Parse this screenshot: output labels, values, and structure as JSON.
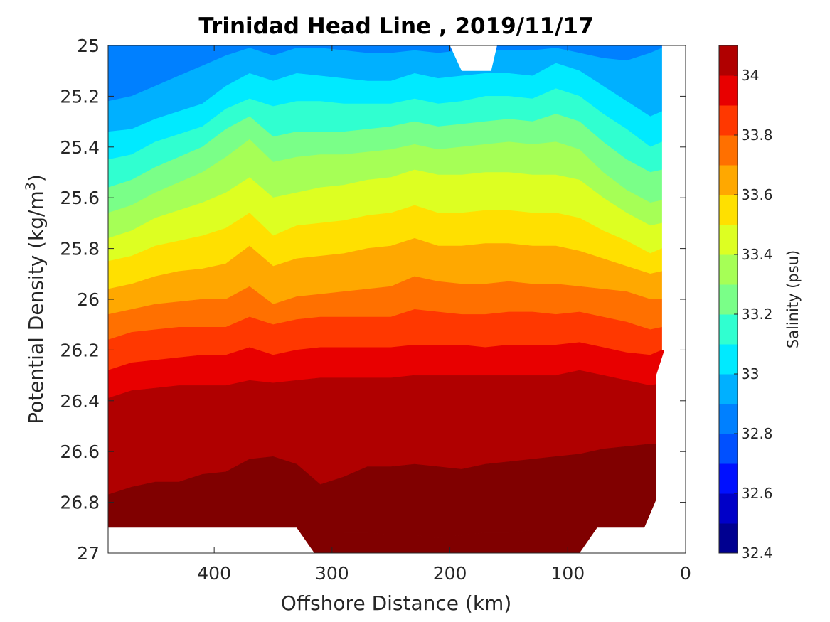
{
  "chart_data": {
    "type": "filled-contour",
    "title": "Trinidad Head Line , 2019/11/17",
    "xlabel": "Offshore Distance (km)",
    "ylabel_prefix": "Potential Density (kg/m",
    "ylabel_sup": "3",
    "ylabel_suffix": ")",
    "colorbar_label": "Salinity (psu)",
    "xlim": [
      0,
      490
    ],
    "x_reversed": true,
    "ylim": [
      25,
      27
    ],
    "y_reversed": true,
    "xticks": [
      "400",
      "300",
      "200",
      "100",
      "0"
    ],
    "xtick_values": [
      400,
      300,
      200,
      100,
      0
    ],
    "yticks": [
      "25",
      "25.2",
      "25.4",
      "25.6",
      "25.8",
      "26",
      "26.2",
      "26.4",
      "26.6",
      "26.8",
      "27"
    ],
    "ytick_values": [
      25,
      25.2,
      25.4,
      25.6,
      25.8,
      26,
      26.2,
      26.4,
      26.6,
      26.8,
      27
    ],
    "colorbar_range": [
      32.4,
      34.1
    ],
    "colorbar_ticks": [
      "32.4",
      "32.6",
      "32.8",
      "33",
      "33.2",
      "33.4",
      "33.6",
      "33.8",
      "34"
    ],
    "colorbar_tick_values": [
      32.4,
      32.6,
      32.8,
      33.0,
      33.2,
      33.4,
      33.6,
      33.8,
      34.0
    ],
    "levels": [
      32.5,
      32.6,
      32.7,
      32.8,
      32.9,
      33.0,
      33.1,
      33.2,
      33.3,
      33.4,
      33.5,
      33.6,
      33.7,
      33.8,
      33.9,
      34.0
    ],
    "colors": [
      "#000090",
      "#0000c8",
      "#0010ff",
      "#0050ff",
      "#0080ff",
      "#00b0ff",
      "#00eaff",
      "#30ffd0",
      "#7aff88",
      "#a6ff56",
      "#ddff22",
      "#ffe000",
      "#ffa800",
      "#ff7000",
      "#ff3800",
      "#e80000",
      "#b00000",
      "#800000"
    ],
    "band_base_index": 4,
    "x": [
      490,
      470,
      450,
      430,
      410,
      390,
      370,
      350,
      330,
      310,
      290,
      270,
      250,
      230,
      210,
      190,
      170,
      150,
      130,
      110,
      90,
      70,
      50,
      30,
      20
    ],
    "boundaries": [
      [
        25.22,
        25.2,
        25.16,
        25.12,
        25.08,
        25.04,
        25.01,
        25.04,
        25.01,
        25.01,
        25.02,
        25.03,
        25.03,
        25.02,
        25.03,
        25.02,
        25.02,
        25.02,
        25.02,
        25.01,
        25.03,
        25.05,
        25.06,
        25.03,
        25.01
      ],
      [
        25.34,
        25.33,
        25.29,
        25.26,
        25.23,
        25.16,
        25.11,
        25.14,
        25.11,
        25.12,
        25.13,
        25.14,
        25.14,
        25.11,
        25.13,
        25.12,
        25.11,
        25.11,
        25.12,
        25.07,
        25.1,
        25.16,
        25.22,
        25.28,
        25.26
      ],
      [
        25.45,
        25.43,
        25.38,
        25.35,
        25.32,
        25.25,
        25.21,
        25.24,
        25.22,
        25.22,
        25.23,
        25.23,
        25.23,
        25.21,
        25.23,
        25.22,
        25.2,
        25.2,
        25.21,
        25.17,
        25.2,
        25.27,
        25.33,
        25.4,
        25.38
      ],
      [
        25.56,
        25.53,
        25.48,
        25.44,
        25.4,
        25.33,
        25.28,
        25.36,
        25.34,
        25.34,
        25.34,
        25.33,
        25.32,
        25.3,
        25.32,
        25.31,
        25.3,
        25.29,
        25.3,
        25.27,
        25.3,
        25.38,
        25.45,
        25.5,
        25.49
      ],
      [
        25.66,
        25.63,
        25.58,
        25.54,
        25.5,
        25.44,
        25.37,
        25.46,
        25.44,
        25.43,
        25.43,
        25.42,
        25.41,
        25.39,
        25.41,
        25.4,
        25.39,
        25.38,
        25.39,
        25.38,
        25.41,
        25.5,
        25.57,
        25.62,
        25.61
      ],
      [
        25.76,
        25.73,
        25.68,
        25.65,
        25.62,
        25.58,
        25.52,
        25.6,
        25.58,
        25.56,
        25.55,
        25.53,
        25.52,
        25.49,
        25.51,
        25.51,
        25.5,
        25.5,
        25.51,
        25.51,
        25.53,
        25.6,
        25.66,
        25.71,
        25.7
      ],
      [
        25.85,
        25.83,
        25.79,
        25.77,
        25.75,
        25.72,
        25.66,
        25.75,
        25.71,
        25.7,
        25.69,
        25.67,
        25.66,
        25.63,
        25.66,
        25.66,
        25.65,
        25.65,
        25.66,
        25.66,
        25.68,
        25.73,
        25.77,
        25.82,
        25.8
      ],
      [
        25.96,
        25.94,
        25.91,
        25.89,
        25.88,
        25.86,
        25.79,
        25.87,
        25.84,
        25.83,
        25.82,
        25.8,
        25.79,
        25.76,
        25.79,
        25.79,
        25.78,
        25.78,
        25.79,
        25.79,
        25.81,
        25.84,
        25.87,
        25.9,
        25.89
      ],
      [
        26.06,
        26.04,
        26.02,
        26.01,
        26.0,
        26.0,
        25.95,
        26.02,
        25.99,
        25.98,
        25.97,
        25.96,
        25.95,
        25.91,
        25.93,
        25.94,
        25.94,
        25.93,
        25.94,
        25.94,
        25.95,
        25.96,
        25.97,
        26.0,
        26.0
      ],
      [
        26.16,
        26.13,
        26.12,
        26.11,
        26.11,
        26.11,
        26.07,
        26.1,
        26.08,
        26.07,
        26.07,
        26.07,
        26.07,
        26.04,
        26.05,
        26.06,
        26.06,
        26.05,
        26.05,
        26.06,
        26.05,
        26.07,
        26.09,
        26.12,
        26.11
      ],
      [
        26.28,
        26.25,
        26.24,
        26.23,
        26.22,
        26.22,
        26.19,
        26.22,
        26.2,
        26.19,
        26.19,
        26.19,
        26.19,
        26.18,
        26.18,
        26.18,
        26.19,
        26.18,
        26.18,
        26.18,
        26.17,
        26.19,
        26.21,
        26.22,
        26.2
      ],
      [
        26.39,
        26.36,
        26.35,
        26.34,
        26.34,
        26.34,
        26.32,
        26.33,
        26.32,
        26.31,
        26.31,
        26.31,
        26.31,
        26.3,
        26.3,
        26.3,
        26.3,
        26.3,
        26.3,
        26.3,
        26.28,
        26.3,
        26.32,
        26.34,
        26.33
      ],
      [
        26.77,
        26.74,
        26.72,
        26.72,
        26.69,
        26.68,
        26.63,
        26.62,
        26.65,
        26.73,
        26.7,
        26.66,
        26.66,
        26.65,
        26.66,
        26.67,
        26.65,
        26.64,
        26.63,
        26.62,
        26.61,
        26.59,
        26.58,
        26.57,
        26.57
      ],
      [
        26.96,
        26.96,
        26.96,
        26.96,
        26.96,
        26.96,
        26.96,
        26.96,
        26.97,
        26.96,
        26.92,
        26.92,
        26.93,
        26.93,
        26.94,
        26.93,
        26.92,
        26.92,
        26.91,
        26.91,
        26.92,
        26.96,
        26.96,
        26.96,
        26.96
      ]
    ],
    "mask_top_km": [
      160,
      180,
      190,
      200
    ],
    "mask_top_depth": 25.1,
    "mask_bottom_left": [
      [
        490,
        26.9
      ],
      [
        330,
        26.9
      ],
      [
        315,
        27.0
      ],
      [
        490,
        27.0
      ]
    ],
    "mask_bottom_right": [
      [
        90,
        27.0
      ],
      [
        75,
        26.9
      ],
      [
        35,
        26.9
      ],
      [
        25,
        26.79
      ],
      [
        25,
        26.3
      ],
      [
        18,
        26.2
      ],
      [
        0,
        26.2
      ],
      [
        0,
        27.0
      ]
    ],
    "mask_right_strip": [
      [
        20,
        25.0
      ],
      [
        0,
        25.0
      ],
      [
        0,
        26.2
      ],
      [
        20,
        26.2
      ]
    ]
  }
}
